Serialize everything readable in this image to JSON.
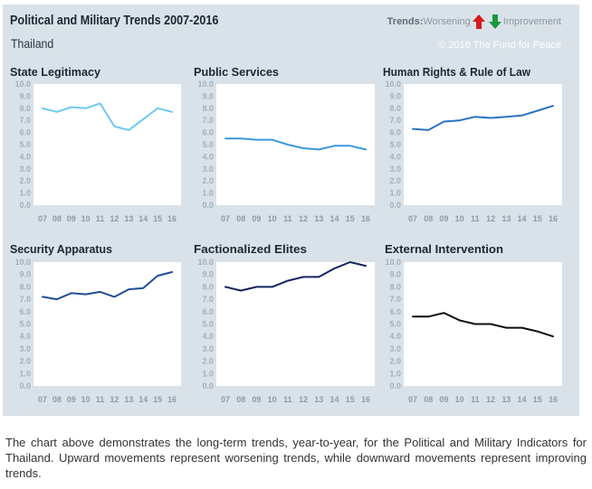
{
  "header": {
    "title": "Political and Military Trends 2007-2016",
    "country": "Thailand",
    "legend_label": "Trends:",
    "legend_worse": "Worsening",
    "legend_better": "Improvement",
    "copyright": "© 2016 The Fund for Peace"
  },
  "colors": {
    "worsening": "#d7191c",
    "improvement": "#1a9641"
  },
  "chart_data": [
    {
      "type": "line",
      "title": "State Legitimacy",
      "categories": [
        "07",
        "08",
        "09",
        "10",
        "11",
        "12",
        "13",
        "14",
        "15",
        "16"
      ],
      "values": [
        8.0,
        7.7,
        8.1,
        8.0,
        8.4,
        6.5,
        6.2,
        7.1,
        8.0,
        7.7
      ],
      "ylim": [
        0,
        10
      ],
      "yticks": [
        "0.0",
        "1.0",
        "2.0",
        "3.0",
        "4.0",
        "5.0",
        "6.0",
        "7.0",
        "8.0",
        "9.0",
        "10.0"
      ],
      "color": "#6fc8ee"
    },
    {
      "type": "line",
      "title": "Public Services",
      "categories": [
        "07",
        "08",
        "09",
        "10",
        "11",
        "12",
        "13",
        "14",
        "15",
        "16"
      ],
      "values": [
        5.5,
        5.5,
        5.4,
        5.4,
        5.0,
        4.7,
        4.6,
        4.9,
        4.9,
        4.6
      ],
      "ylim": [
        0,
        10
      ],
      "yticks": [
        "0.0",
        "1.0",
        "2.0",
        "3.0",
        "4.0",
        "5.0",
        "6.0",
        "7.0",
        "8.0",
        "9.0",
        "10.0"
      ],
      "color": "#3a9ad9"
    },
    {
      "type": "line",
      "title": "Human Rights & Rule of Law",
      "categories": [
        "07",
        "08",
        "09",
        "10",
        "11",
        "12",
        "13",
        "14",
        "15",
        "16"
      ],
      "values": [
        6.3,
        6.2,
        6.9,
        7.0,
        7.3,
        7.2,
        7.3,
        7.4,
        7.8,
        8.2
      ],
      "ylim": [
        0,
        10
      ],
      "yticks": [
        "0.0",
        "1.0",
        "2.0",
        "3.0",
        "4.0",
        "5.0",
        "6.0",
        "7.0",
        "8.0",
        "9.0",
        "10.0"
      ],
      "color": "#2a72c2"
    },
    {
      "type": "line",
      "title": "Security Apparatus",
      "categories": [
        "07",
        "08",
        "09",
        "10",
        "11",
        "12",
        "13",
        "14",
        "15",
        "16"
      ],
      "values": [
        7.2,
        7.0,
        7.5,
        7.4,
        7.6,
        7.2,
        7.8,
        7.9,
        8.9,
        9.2
      ],
      "ylim": [
        0,
        10
      ],
      "yticks": [
        "0.0",
        "1.0",
        "2.0",
        "3.0",
        "4.0",
        "5.0",
        "6.0",
        "7.0",
        "8.0",
        "9.0",
        "10.0"
      ],
      "color": "#204e96"
    },
    {
      "type": "line",
      "title": "Factionalized Elites",
      "categories": [
        "07",
        "08",
        "09",
        "10",
        "11",
        "12",
        "13",
        "14",
        "15",
        "16"
      ],
      "values": [
        8.0,
        7.7,
        8.0,
        8.0,
        8.5,
        8.8,
        8.8,
        9.5,
        10.0,
        9.7
      ],
      "ylim": [
        0,
        10
      ],
      "yticks": [
        "0.0",
        "1.0",
        "2.0",
        "3.0",
        "4.0",
        "5.0",
        "6.0",
        "7.0",
        "8.0",
        "9.0",
        "10.0"
      ],
      "color": "#14245e"
    },
    {
      "type": "line",
      "title": "External Intervention",
      "categories": [
        "07",
        "08",
        "09",
        "10",
        "11",
        "12",
        "13",
        "14",
        "15",
        "16"
      ],
      "values": [
        5.6,
        5.6,
        5.9,
        5.3,
        5.0,
        5.0,
        4.7,
        4.7,
        4.4,
        4.0
      ],
      "ylim": [
        0,
        10
      ],
      "yticks": [
        "0.0",
        "1.0",
        "2.0",
        "3.0",
        "4.0",
        "5.0",
        "6.0",
        "7.0",
        "8.0",
        "9.0",
        "10.0"
      ],
      "color": "#0d0d0d"
    }
  ],
  "caption": "The chart above demonstrates the long-term trends, year-to-year, for the Political and Military Indicators for Thailand. Upward movements represent worsening trends, while downward movements represent improving trends."
}
